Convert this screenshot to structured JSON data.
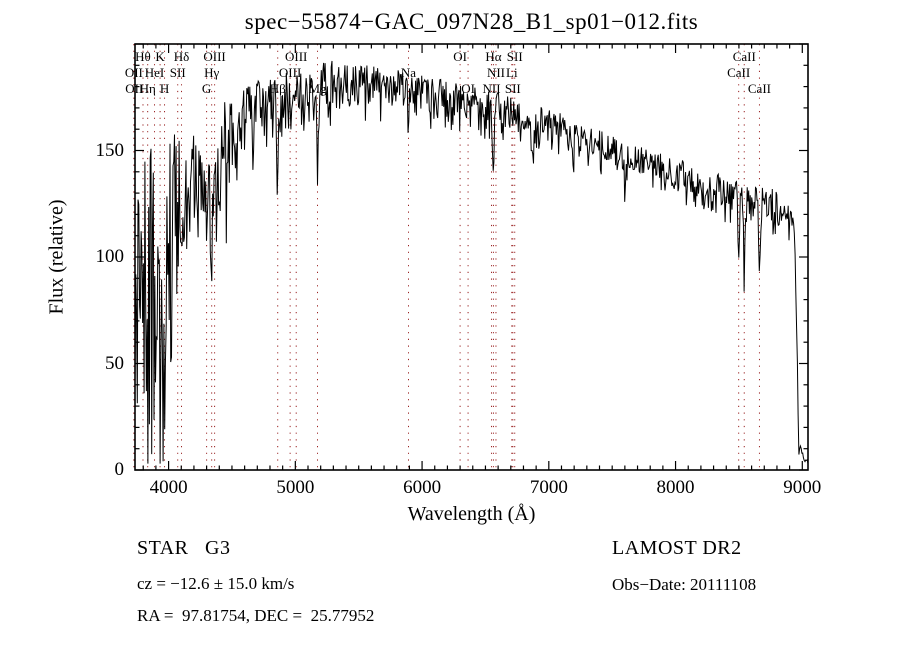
{
  "chart_data": {
    "type": "line",
    "title": "spec−55874−GAC_097N28_B1_sp01−012.fits",
    "xlabel": "Wavelength (Å)",
    "ylabel": "Flux (relative)",
    "xlim": [
      3735,
      9045
    ],
    "ylim": [
      0,
      200
    ],
    "x_major_ticks": [
      4000,
      5000,
      6000,
      7000,
      8000,
      9000
    ],
    "x_minor_tick_step": 100,
    "y_major_ticks": [
      0,
      50,
      100,
      150
    ],
    "y_minor_tick_step": 10,
    "grid": false,
    "legend": null,
    "trace_color": "#000000",
    "line_marker_color": "#992222",
    "spectral_line_markers": [
      {
        "label": "OII",
        "wavelength": 3726,
        "row": 2
      },
      {
        "label": "OII",
        "wavelength": 3729,
        "row": 3
      },
      {
        "label": "Hθ",
        "wavelength": 3798,
        "row": 1
      },
      {
        "label": "Hη",
        "wavelength": 3835,
        "row": 3
      },
      {
        "label": "HeI",
        "wavelength": 3889,
        "row": 2
      },
      {
        "label": "K",
        "wavelength": 3933,
        "row": 1
      },
      {
        "label": "H",
        "wavelength": 3968,
        "row": 3
      },
      {
        "label": "SII",
        "wavelength": 4072,
        "row": 2
      },
      {
        "label": "Hδ",
        "wavelength": 4102,
        "row": 1
      },
      {
        "label": "G",
        "wavelength": 4300,
        "row": 3
      },
      {
        "label": "Hγ",
        "wavelength": 4340,
        "row": 2
      },
      {
        "label": "OIII",
        "wavelength": 4363,
        "row": 1
      },
      {
        "label": "Hβ",
        "wavelength": 4861,
        "row": 3
      },
      {
        "label": "OIII",
        "wavelength": 4959,
        "row": 2
      },
      {
        "label": "OIII",
        "wavelength": 5007,
        "row": 1
      },
      {
        "label": "Mg",
        "wavelength": 5175,
        "row": 3
      },
      {
        "label": "Na",
        "wavelength": 5893,
        "row": 2
      },
      {
        "label": "OI",
        "wavelength": 6300,
        "row": 1
      },
      {
        "label": "OI",
        "wavelength": 6363,
        "row": 3
      },
      {
        "label": "NII",
        "wavelength": 6548,
        "row": 3
      },
      {
        "label": "Hα",
        "wavelength": 6563,
        "row": 1
      },
      {
        "label": "NII",
        "wavelength": 6583,
        "row": 2
      },
      {
        "label": "Li",
        "wavelength": 6708,
        "row": 2
      },
      {
        "label": "SII",
        "wavelength": 6716,
        "row": 3
      },
      {
        "label": "SII",
        "wavelength": 6731,
        "row": 1
      },
      {
        "label": "CaII",
        "wavelength": 8498,
        "row": 2
      },
      {
        "label": "CaII",
        "wavelength": 8542,
        "row": 1
      },
      {
        "label": "CaII",
        "wavelength": 8662,
        "row": 3
      }
    ],
    "spectrum": {
      "sample_step_angstrom": 6,
      "noise_seed": 20111108,
      "noise_down_bias": 0.58,
      "continuum_points": [
        [
          3735,
          85
        ],
        [
          3760,
          95
        ],
        [
          3800,
          100
        ],
        [
          3850,
          104
        ],
        [
          3900,
          107
        ],
        [
          3950,
          108
        ],
        [
          4000,
          118
        ],
        [
          4050,
          128
        ],
        [
          4100,
          138
        ],
        [
          4150,
          140
        ],
        [
          4200,
          136
        ],
        [
          4250,
          139
        ],
        [
          4300,
          144
        ],
        [
          4350,
          150
        ],
        [
          4400,
          155
        ],
        [
          4500,
          162
        ],
        [
          4600,
          167
        ],
        [
          4700,
          172
        ],
        [
          4800,
          175
        ],
        [
          4900,
          176
        ],
        [
          5000,
          178
        ],
        [
          5100,
          177
        ],
        [
          5200,
          181
        ],
        [
          5300,
          183
        ],
        [
          5400,
          182
        ],
        [
          5500,
          182
        ],
        [
          5600,
          181
        ],
        [
          5700,
          180
        ],
        [
          5800,
          179
        ],
        [
          5900,
          178
        ],
        [
          6000,
          177
        ],
        [
          6100,
          176
        ],
        [
          6200,
          175
        ],
        [
          6300,
          174
        ],
        [
          6400,
          172
        ],
        [
          6500,
          171
        ],
        [
          6600,
          170
        ],
        [
          6700,
          168
        ],
        [
          6800,
          166
        ],
        [
          6900,
          164
        ],
        [
          7000,
          163
        ],
        [
          7100,
          161
        ],
        [
          7200,
          159
        ],
        [
          7300,
          156
        ],
        [
          7400,
          153
        ],
        [
          7500,
          151
        ],
        [
          7600,
          148
        ],
        [
          7700,
          146
        ],
        [
          7800,
          144
        ],
        [
          7900,
          142
        ],
        [
          8000,
          140
        ],
        [
          8100,
          138
        ],
        [
          8200,
          135
        ],
        [
          8300,
          133
        ],
        [
          8400,
          131
        ],
        [
          8500,
          129
        ],
        [
          8600,
          127
        ],
        [
          8700,
          126
        ],
        [
          8800,
          124
        ],
        [
          8900,
          120
        ],
        [
          8940,
          115
        ],
        [
          8958,
          60
        ],
        [
          8970,
          12
        ],
        [
          9000,
          7
        ],
        [
          9045,
          5
        ]
      ],
      "noise_amplitude_points": [
        [
          3735,
          60
        ],
        [
          3900,
          60
        ],
        [
          3950,
          55
        ],
        [
          4000,
          46
        ],
        [
          4100,
          36
        ],
        [
          4200,
          28
        ],
        [
          4300,
          24
        ],
        [
          4400,
          20
        ],
        [
          4500,
          16
        ],
        [
          4600,
          14
        ],
        [
          4800,
          13
        ],
        [
          5000,
          12
        ],
        [
          5500,
          11
        ],
        [
          6000,
          10
        ],
        [
          6500,
          9
        ],
        [
          7000,
          8
        ],
        [
          8000,
          8
        ],
        [
          8500,
          9
        ],
        [
          8850,
          9
        ],
        [
          8930,
          6
        ],
        [
          8965,
          3
        ],
        [
          9045,
          2
        ]
      ],
      "absorption_lines": [
        [
          3727,
          45,
          5
        ],
        [
          3750,
          50,
          4
        ],
        [
          3798,
          60,
          5
        ],
        [
          3835,
          65,
          5
        ],
        [
          3889,
          62,
          5
        ],
        [
          3933,
          78,
          6
        ],
        [
          3968,
          76,
          6
        ],
        [
          4026,
          40,
          5
        ],
        [
          4072,
          35,
          5
        ],
        [
          4102,
          60,
          6
        ],
        [
          4144,
          30,
          5
        ],
        [
          4227,
          28,
          5
        ],
        [
          4300,
          38,
          8
        ],
        [
          4340,
          62,
          6
        ],
        [
          4383,
          35,
          5
        ],
        [
          4457,
          25,
          5
        ],
        [
          4530,
          22,
          5
        ],
        [
          4668,
          25,
          5
        ],
        [
          4861,
          40,
          6
        ],
        [
          5175,
          30,
          6
        ],
        [
          5270,
          18,
          6
        ],
        [
          5893,
          24,
          5
        ],
        [
          6122,
          12,
          5
        ],
        [
          6563,
          36,
          6
        ],
        [
          6870,
          16,
          8
        ],
        [
          7190,
          9,
          8
        ],
        [
          7605,
          13,
          9
        ],
        [
          8230,
          9,
          8
        ],
        [
          8498,
          27,
          6
        ],
        [
          8542,
          35,
          6
        ],
        [
          8662,
          31,
          6
        ]
      ]
    }
  },
  "footer": {
    "class_line": "STAR   G3",
    "survey": "LAMOST DR2",
    "cz_line": "cz = −12.6 ± 15.0 km/s",
    "obs_line": "Obs−Date: 20111108",
    "radec_line": "RA =  97.81754, DEC =  25.77952"
  }
}
